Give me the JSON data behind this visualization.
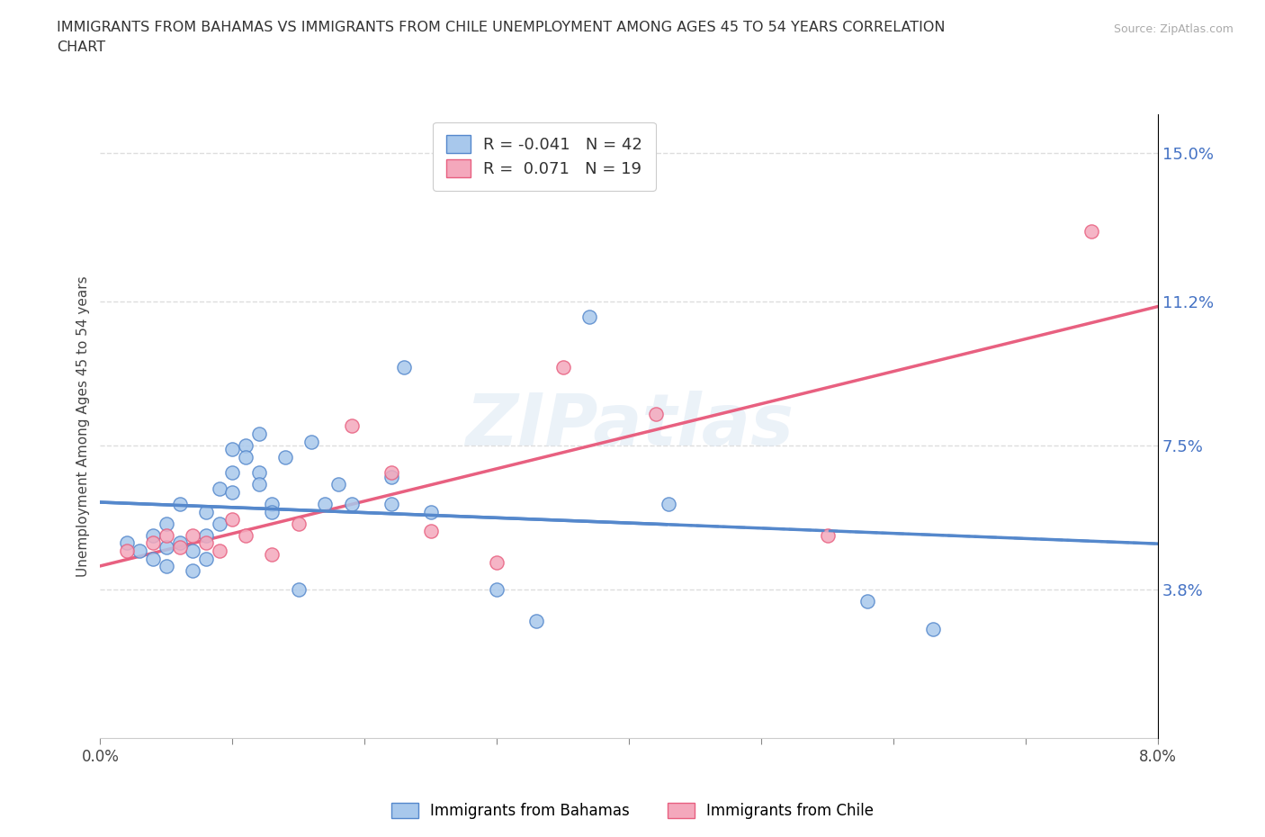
{
  "title_line1": "IMMIGRANTS FROM BAHAMAS VS IMMIGRANTS FROM CHILE UNEMPLOYMENT AMONG AGES 45 TO 54 YEARS CORRELATION",
  "title_line2": "CHART",
  "source": "Source: ZipAtlas.com",
  "ylabel": "Unemployment Among Ages 45 to 54 years",
  "x_ticks": [
    0.0,
    0.01,
    0.02,
    0.03,
    0.04,
    0.05,
    0.06,
    0.07,
    0.08
  ],
  "x_tick_labels": [
    "0.0%",
    "",
    "",
    "",
    "",
    "",
    "",
    "",
    "8.0%"
  ],
  "y_ticks_right": [
    0.038,
    0.075,
    0.112,
    0.15
  ],
  "y_tick_labels_right": [
    "3.8%",
    "7.5%",
    "11.2%",
    "15.0%"
  ],
  "xlim": [
    0.0,
    0.08
  ],
  "ylim": [
    0.0,
    0.16
  ],
  "watermark": "ZIPatlas",
  "bahamas_color": "#A8C8EC",
  "chile_color": "#F4A8BC",
  "bahamas_line_color": "#5588CC",
  "chile_line_color": "#E86080",
  "legend_R_bahamas": "-0.041",
  "legend_N_bahamas": "42",
  "legend_R_chile": "0.071",
  "legend_N_chile": "19",
  "bahamas_x": [
    0.002,
    0.003,
    0.004,
    0.004,
    0.005,
    0.005,
    0.005,
    0.006,
    0.006,
    0.007,
    0.007,
    0.008,
    0.008,
    0.008,
    0.009,
    0.009,
    0.01,
    0.01,
    0.01,
    0.011,
    0.011,
    0.012,
    0.012,
    0.012,
    0.013,
    0.013,
    0.014,
    0.015,
    0.016,
    0.017,
    0.018,
    0.019,
    0.022,
    0.022,
    0.023,
    0.025,
    0.03,
    0.033,
    0.037,
    0.043,
    0.058,
    0.063
  ],
  "bahamas_y": [
    0.05,
    0.048,
    0.052,
    0.046,
    0.055,
    0.049,
    0.044,
    0.06,
    0.05,
    0.048,
    0.043,
    0.058,
    0.052,
    0.046,
    0.064,
    0.055,
    0.074,
    0.068,
    0.063,
    0.075,
    0.072,
    0.078,
    0.068,
    0.065,
    0.06,
    0.058,
    0.072,
    0.038,
    0.076,
    0.06,
    0.065,
    0.06,
    0.067,
    0.06,
    0.095,
    0.058,
    0.038,
    0.03,
    0.108,
    0.06,
    0.035,
    0.028
  ],
  "chile_x": [
    0.002,
    0.004,
    0.005,
    0.006,
    0.007,
    0.008,
    0.009,
    0.01,
    0.011,
    0.013,
    0.015,
    0.019,
    0.022,
    0.025,
    0.03,
    0.035,
    0.042,
    0.055,
    0.075
  ],
  "chile_y": [
    0.048,
    0.05,
    0.052,
    0.049,
    0.052,
    0.05,
    0.048,
    0.056,
    0.052,
    0.047,
    0.055,
    0.08,
    0.068,
    0.053,
    0.045,
    0.095,
    0.083,
    0.052,
    0.13
  ],
  "background_color": "#FFFFFF",
  "grid_color": "#DDDDDD"
}
